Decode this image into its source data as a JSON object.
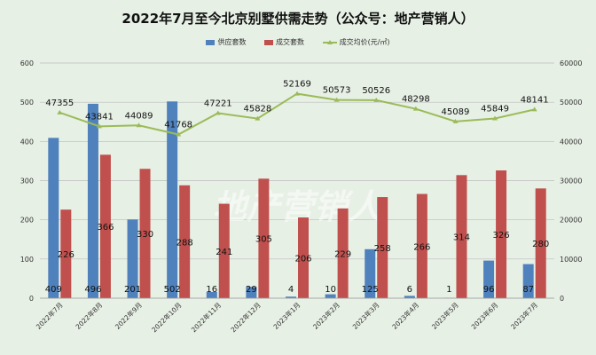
{
  "chart_data": {
    "type": "bar",
    "title": "2022年7月至今北京别墅供需走势（公众号：地产营销人）",
    "watermark": "地产营销人",
    "categories": [
      "2022年7月",
      "2022年8月",
      "2022年9月",
      "2022年10月",
      "2022年11月",
      "2022年12月",
      "2023年1月",
      "2023年2月",
      "2023年3月",
      "2023年4月",
      "2023年5月",
      "2023年6月",
      "2023年7月"
    ],
    "series": [
      {
        "name": "供应套数",
        "type": "bar",
        "axis": "left",
        "color": "#4f81bd",
        "values": [
          409,
          496,
          201,
          502,
          16,
          29,
          4,
          10,
          125,
          6,
          1,
          96,
          87
        ]
      },
      {
        "name": "成交套数",
        "type": "bar",
        "axis": "left",
        "color": "#c0504d",
        "values": [
          226,
          366,
          330,
          288,
          241,
          305,
          206,
          229,
          258,
          266,
          314,
          326,
          280
        ]
      },
      {
        "name": "成交均价(元/㎡)",
        "type": "line",
        "axis": "right",
        "color": "#9bbb59",
        "values": [
          47355,
          43841,
          44089,
          41768,
          47221,
          45828,
          52169,
          50573,
          50526,
          48298,
          45089,
          45849,
          48141
        ]
      }
    ],
    "left_axis": {
      "min": 0,
      "max": 600,
      "ticks": [
        0,
        100,
        200,
        300,
        400,
        500,
        600
      ]
    },
    "right_axis": {
      "min": 0,
      "max": 60000,
      "ticks": [
        0,
        10000,
        20000,
        30000,
        40000,
        50000,
        60000
      ]
    },
    "legend_position": "top",
    "grid": true
  }
}
